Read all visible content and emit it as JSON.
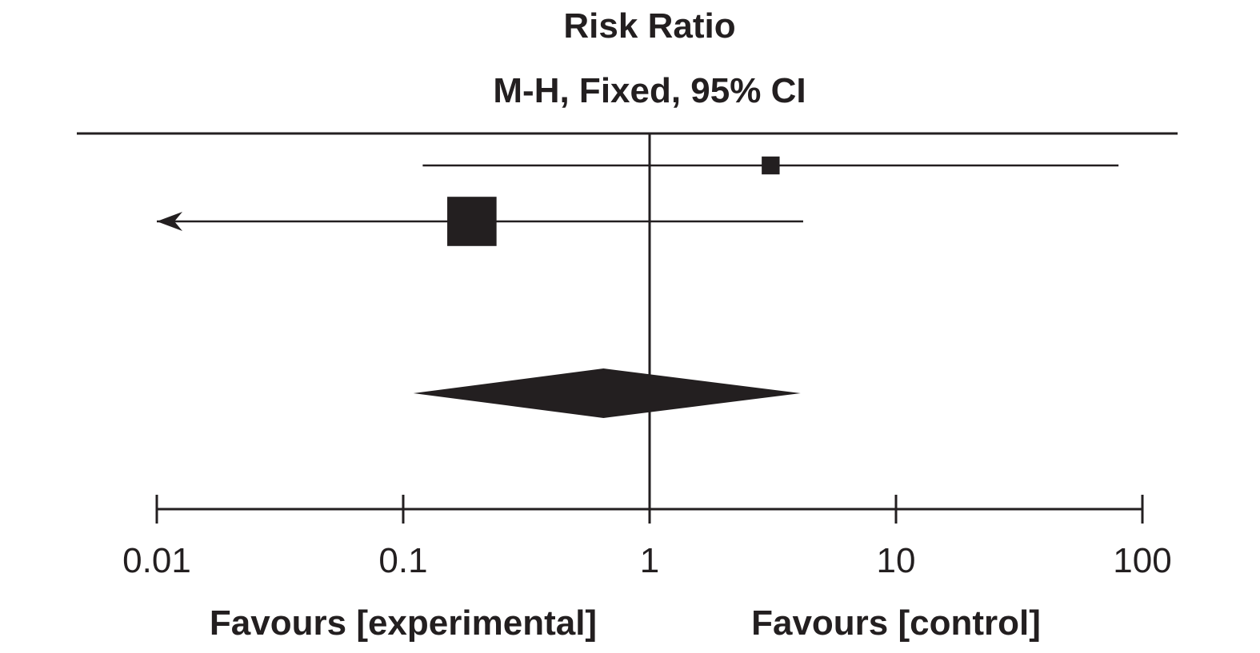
{
  "chart_data": {
    "type": "forest",
    "title": "Risk Ratio",
    "subtitle": "M-H, Fixed, 95% CI",
    "x_scale": "log",
    "xlim": [
      0.01,
      100
    ],
    "ticks": [
      {
        "value": 0.01,
        "label": "0.01"
      },
      {
        "value": 0.1,
        "label": "0.1"
      },
      {
        "value": 1,
        "label": "1"
      },
      {
        "value": 10,
        "label": "10"
      },
      {
        "value": 100,
        "label": "100"
      }
    ],
    "reference_line": 1,
    "favours_left": "Favours [experimental]",
    "favours_right": "Favours [control]",
    "studies": [
      {
        "estimate": 3.1,
        "ci_lower": 0.12,
        "ci_upper": 80,
        "weight": 0.15,
        "lower_truncated": false,
        "upper_truncated": false
      },
      {
        "estimate": 0.19,
        "ci_lower": 0.01,
        "ci_upper": 4.2,
        "weight": 0.85,
        "lower_truncated": true,
        "upper_truncated": false
      }
    ],
    "pooled": {
      "estimate": 0.65,
      "ci_lower": 0.11,
      "ci_upper": 4.1
    },
    "colors": {
      "ink": "#231f20",
      "background": "#ffffff"
    }
  }
}
